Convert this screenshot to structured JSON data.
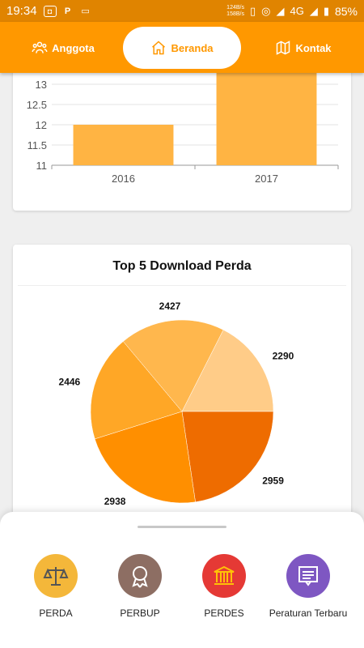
{
  "status_bar": {
    "time": "19:34",
    "net_speed_up": "124B/s",
    "net_speed_down": "158B/s",
    "network": "4G",
    "battery": "85%"
  },
  "top_nav": {
    "items": [
      {
        "label": "Anggota",
        "icon": "people-icon",
        "active": false
      },
      {
        "label": "Beranda",
        "icon": "home-icon",
        "active": true
      },
      {
        "label": "Kontak",
        "icon": "map-icon",
        "active": false
      }
    ],
    "color": "#ff9800"
  },
  "chart_data": [
    {
      "type": "bar",
      "categories": [
        "2016",
        "2017"
      ],
      "values": [
        12,
        13.5
      ],
      "ylim": [
        11,
        13.5
      ],
      "y_ticks": [
        "11",
        "11.5",
        "12",
        "12.5",
        "13"
      ],
      "grid": true,
      "color": "#ffb443"
    },
    {
      "type": "pie",
      "title": "Top 5 Download Perda",
      "values": [
        2290,
        2959,
        2938,
        2446,
        2427
      ],
      "colors": [
        "#ffcc88",
        "#ee6c00",
        "#ff8f00",
        "#ffa726",
        "#ffb74d"
      ]
    }
  ],
  "bottom_menu": {
    "items": [
      {
        "label": "PERDA",
        "icon": "scales-icon",
        "color": "#f4b73a"
      },
      {
        "label": "PERBUP",
        "icon": "award-icon",
        "color": "#8d6e63"
      },
      {
        "label": "PERDES",
        "icon": "building-icon",
        "color": "#e53935"
      },
      {
        "label": "Peraturan Terbaru",
        "icon": "document-icon",
        "color": "#7e57c2"
      }
    ]
  }
}
